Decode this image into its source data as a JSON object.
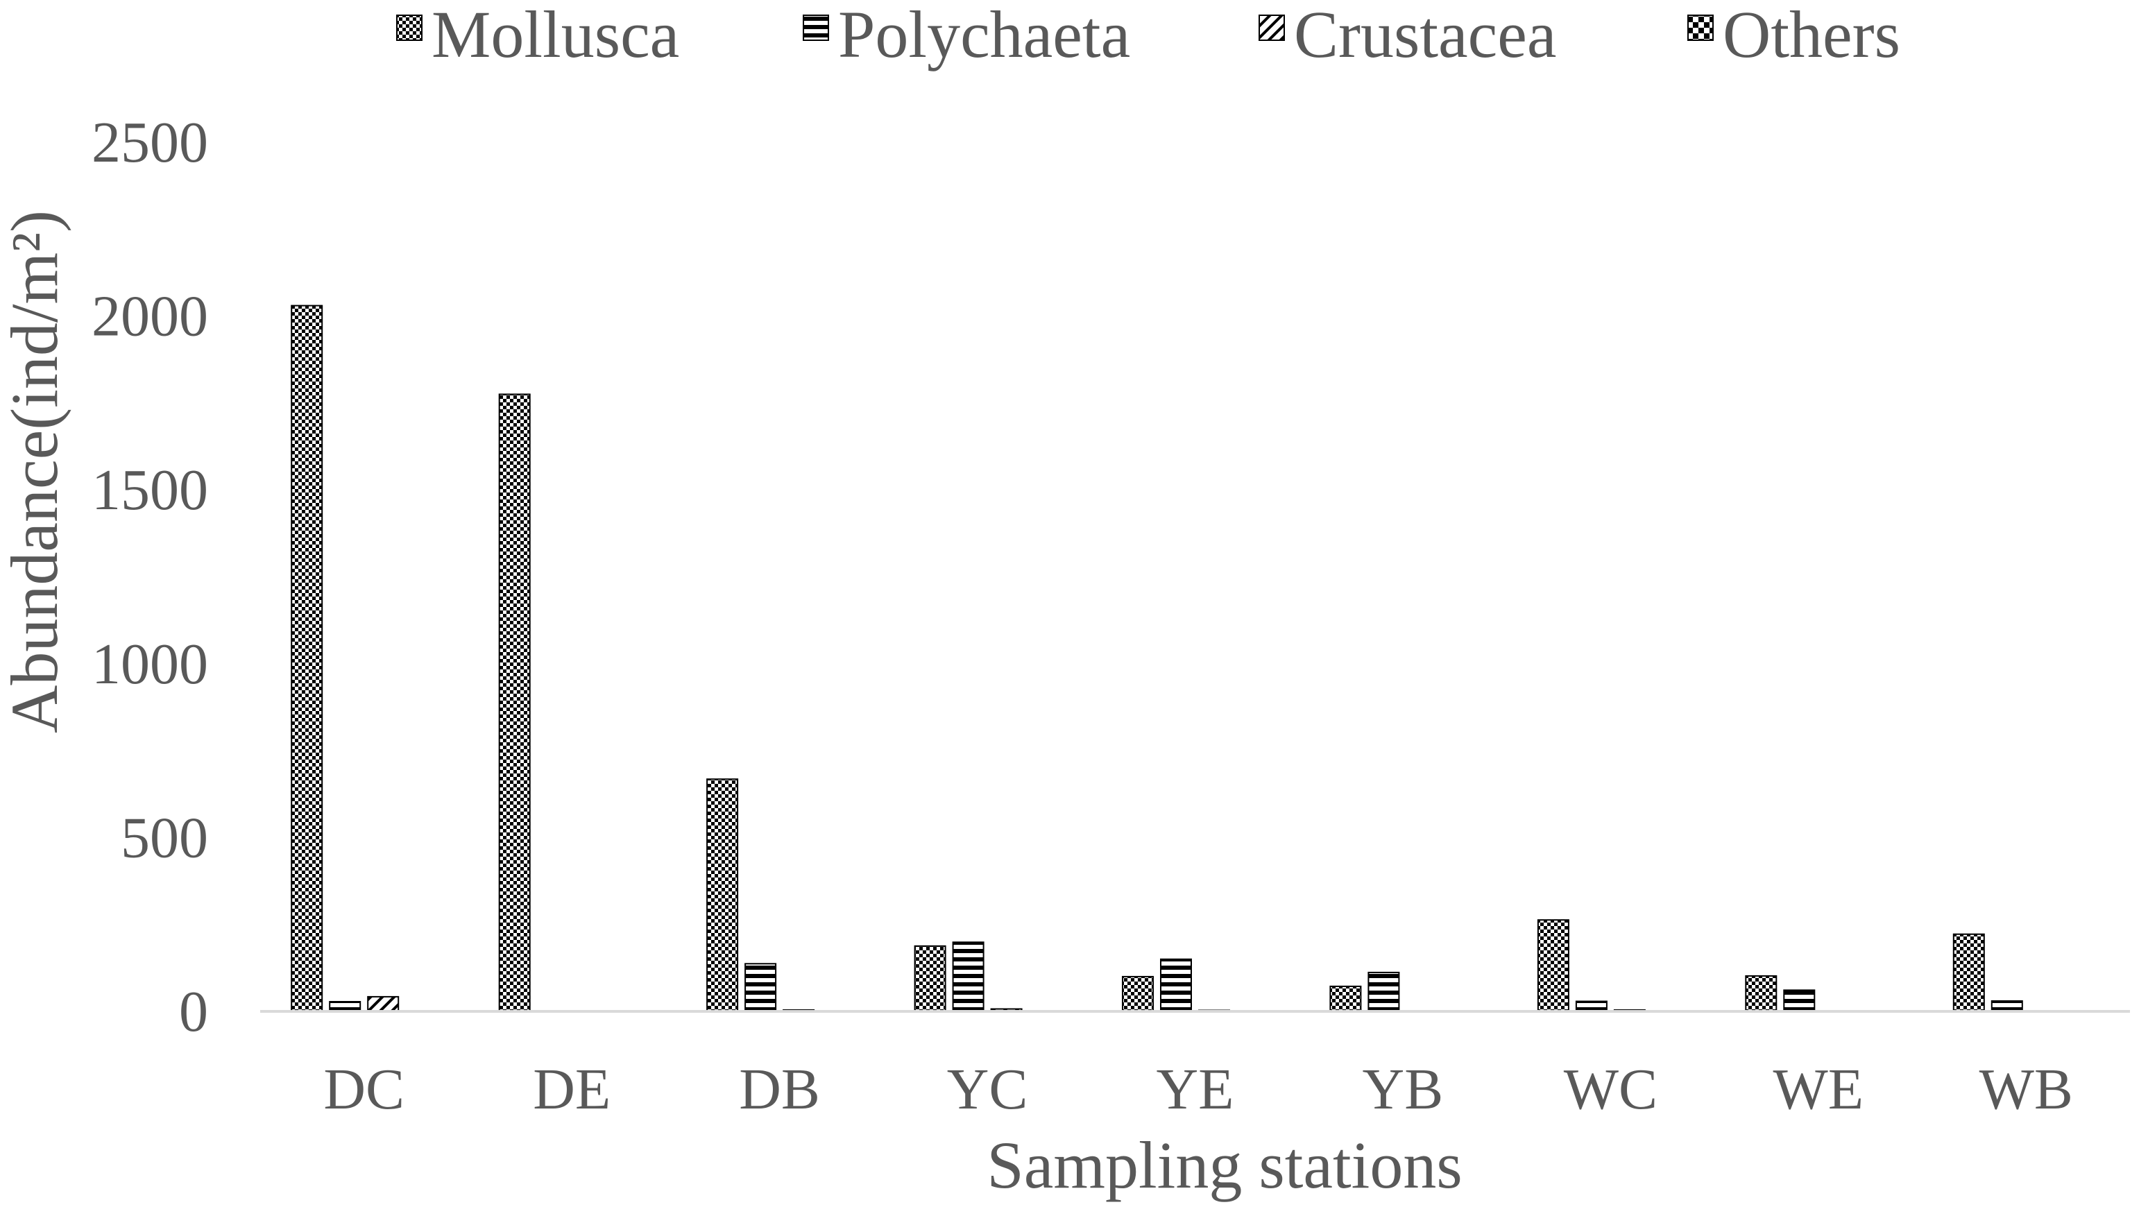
{
  "chart_data": {
    "type": "bar",
    "title": "",
    "xlabel": "Sampling stations",
    "ylabel": "Abundance(ind/m²)",
    "categories": [
      "DC",
      "DE",
      "DB",
      "YC",
      "YE",
      "YB",
      "WC",
      "WE",
      "WB"
    ],
    "series": [
      {
        "name": "Mollusca",
        "pattern": "checker",
        "values": [
          2030,
          1775,
          668,
          188,
          100,
          72,
          263,
          102,
          222
        ]
      },
      {
        "name": "Polychaeta",
        "pattern": "hstripes",
        "values": [
          28,
          0,
          137,
          199,
          150,
          112,
          29,
          61,
          30
        ]
      },
      {
        "name": "Crustacea",
        "pattern": "diagonal",
        "values": [
          42,
          0,
          4,
          7,
          3,
          2,
          4,
          2,
          2
        ]
      },
      {
        "name": "Others",
        "pattern": "bigcheck",
        "values": [
          0,
          0,
          0,
          0,
          0,
          0,
          0,
          0,
          0
        ]
      }
    ],
    "ylim": [
      0,
      2500
    ],
    "yticks": [
      0,
      500,
      1000,
      1500,
      2000,
      2500
    ],
    "grid": false,
    "legend_position": "top"
  }
}
